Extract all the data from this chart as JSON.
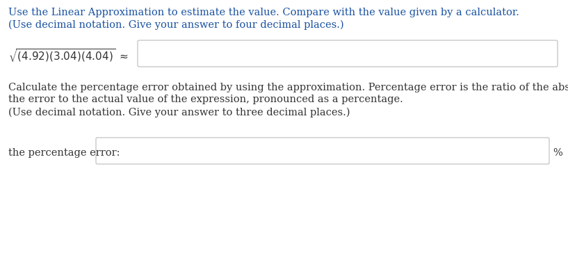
{
  "title_line1": "Use the Linear Approximation to estimate the value. Compare with the value given by a calculator.",
  "title_line2": "(Use decimal notation. Give your answer to four decimal places.)",
  "section2_line1": "Calculate the percentage error obtained by using the approximation. Percentage error is the ratio of the absolute value of",
  "section2_line2": "the error to the actual value of the expression, pronounced as a percentage.",
  "section2_line3": "(Use decimal notation. Give your answer to three decimal places.)",
  "answer_label": "the percentage error:",
  "percent_symbol": "%",
  "text_color_blue": "#1a52a0",
  "text_color_black": "#333333",
  "bg_color": "#ffffff",
  "box_edge_color": "#bbbbbb",
  "font_size_main": 10.5,
  "font_size_formula": 11
}
